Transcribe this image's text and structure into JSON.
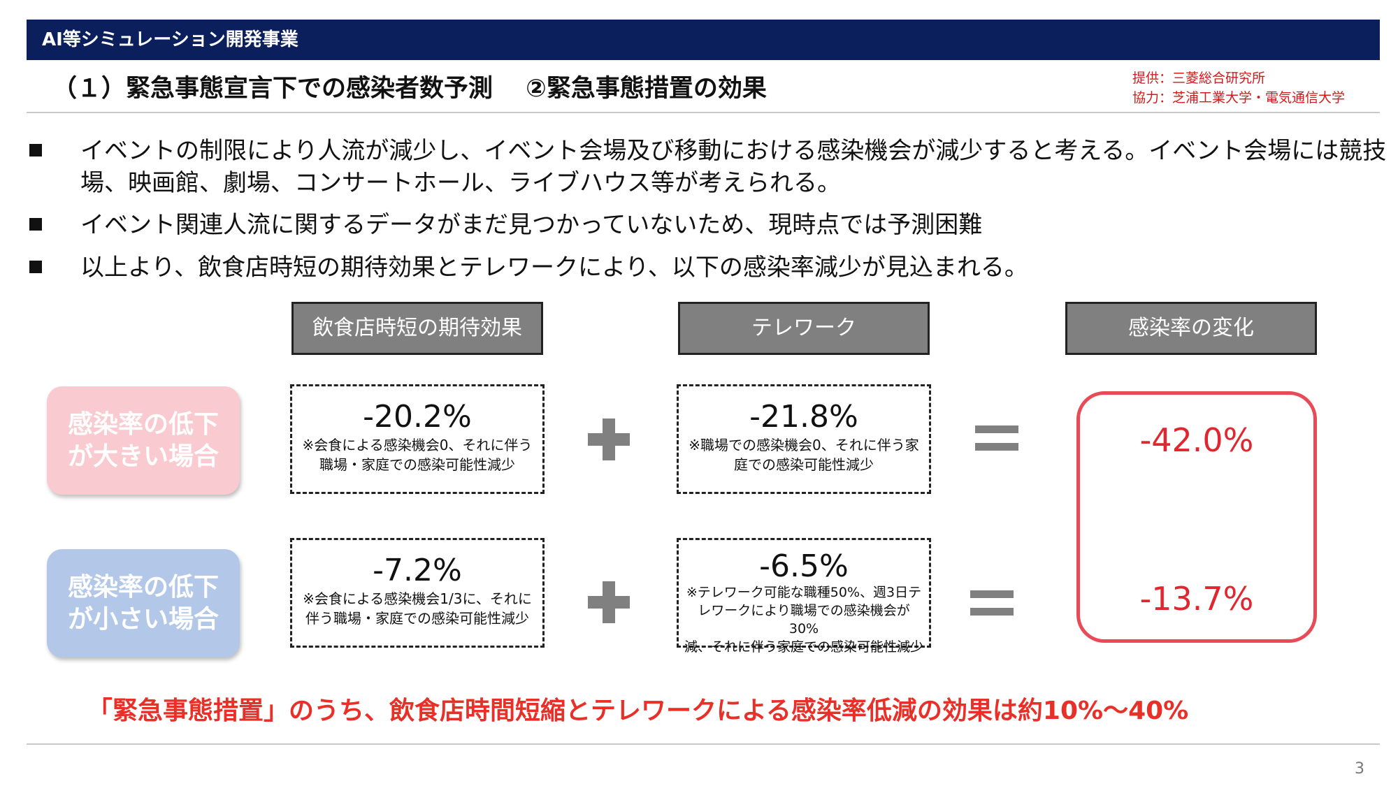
{
  "header": {
    "section": "AI等シミュレーション開発事業",
    "subtitle": "（１）緊急事態宣言下での感染者数予測　 ②緊急事態措置の効果",
    "credit_line1": "提供：三菱総合研究所",
    "credit_line2": "協力：芝浦工業大学・電気通信大学"
  },
  "bullets": [
    {
      "line1": "イベントの制限により人流が減少し、イベント会場及び移動における感染機会が減少すると考える。イベント会場には競技",
      "line2": "場、映画館、劇場、コンサートホール、ライブハウス等が考えられる。"
    },
    {
      "line1": "イベント関連人流に関するデータがまだ見つかっていないため、現時点では予測困難"
    },
    {
      "line1": "以上より、飲食店時短の期待効果とテレワークにより、以下の感染率減少が見込まれる。"
    }
  ],
  "columns": {
    "restaurant": "飲食店時短の期待効果",
    "telework": "テレワーク",
    "change": "感染率の変化"
  },
  "cases": {
    "large": "感染率の低下が大きい場合",
    "small": "感染率の低下が小さい場合"
  },
  "large_case": {
    "restaurant_value": "-20.2%",
    "restaurant_note1": "※会食による感染機会0、それに伴う",
    "restaurant_note2": "職場・家庭での感染可能性減少",
    "telework_value": "-21.8%",
    "telework_note1": "※職場での感染機会0、それに伴う家",
    "telework_note2": "庭での感染可能性減少",
    "result": "-42.0%"
  },
  "small_case": {
    "restaurant_value": "-7.2%",
    "restaurant_note1": "※会食による感染機会1/3に、それに",
    "restaurant_note2": "伴う職場・家庭での感染可能性減少",
    "telework_value": "-6.5%",
    "telework_note1": "※テレワーク可能な職種50%、週3日テ",
    "telework_note2": "レワークにより職場での感染機会が30%",
    "telework_note3": "減、それに伴う家庭での感染可能性減少",
    "result": "-13.7%"
  },
  "conclusion": "「緊急事態措置」のうち、飲食店時間短縮とテレワークによる感染率低減の効果は約10%～40%",
  "page_number": "3",
  "colors": {
    "header_bg": "#0b1f5c",
    "accent_red": "#e0262f",
    "pink_case": "#f9cbd0",
    "blue_case": "#b3c8e8",
    "column_head": "#808080"
  }
}
